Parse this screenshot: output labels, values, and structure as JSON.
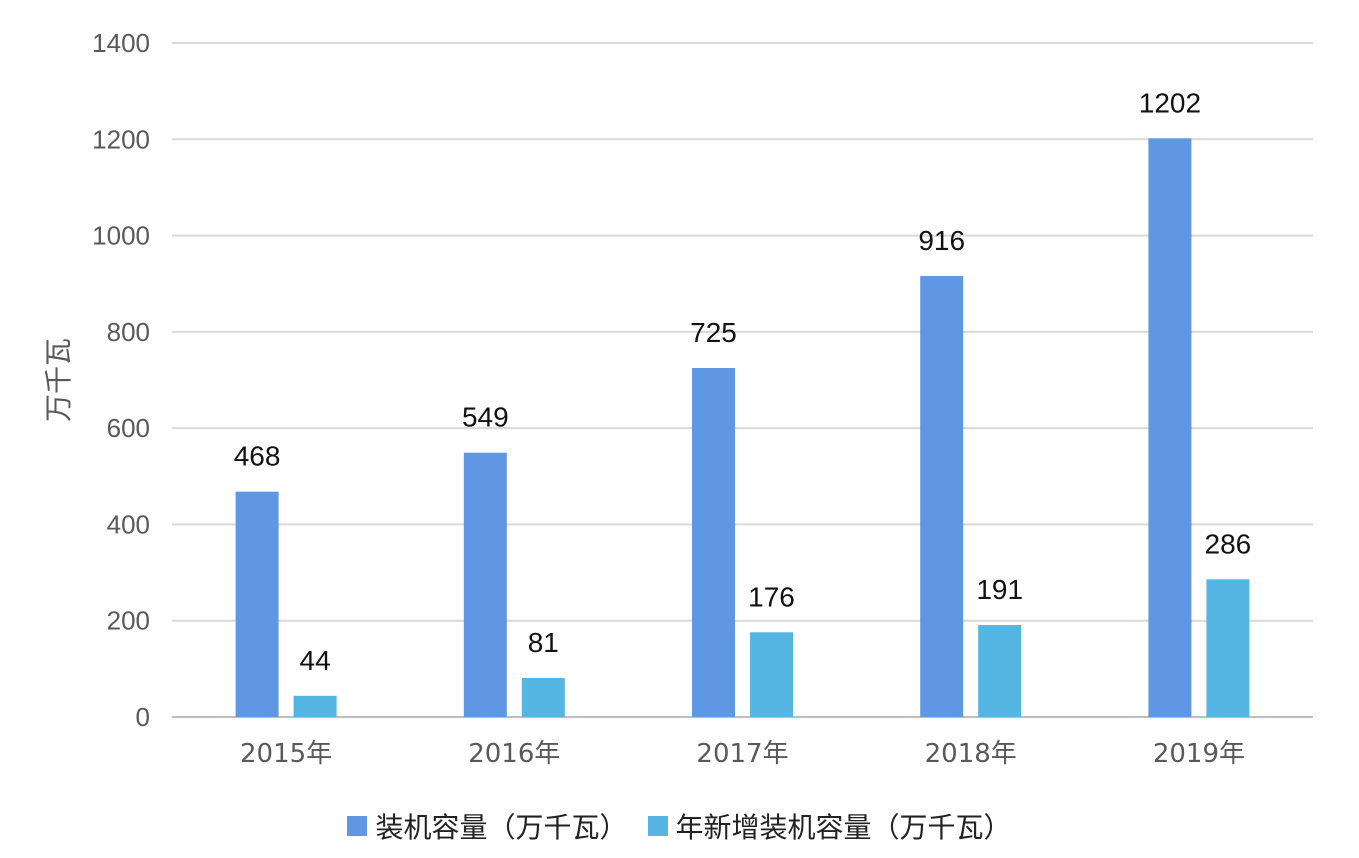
{
  "chart_data": {
    "type": "bar",
    "categories": [
      "2015年",
      "2016年",
      "2017年",
      "2018年",
      "2019年"
    ],
    "series": [
      {
        "name": "装机容量（万千瓦）",
        "values": [
          468,
          549,
          725,
          916,
          1202
        ],
        "color": "#6097e5"
      },
      {
        "name": "年新增装机容量（万千瓦）",
        "values": [
          44,
          81,
          176,
          191,
          286
        ],
        "color": "#56b6e3"
      }
    ],
    "ylabel": "万千瓦",
    "ylim": [
      0,
      1400
    ],
    "yticks": [
      "0",
      "200",
      "400",
      "600",
      "800",
      "1000",
      "1200",
      "1400"
    ],
    "grid": true,
    "legend": "bottom"
  }
}
